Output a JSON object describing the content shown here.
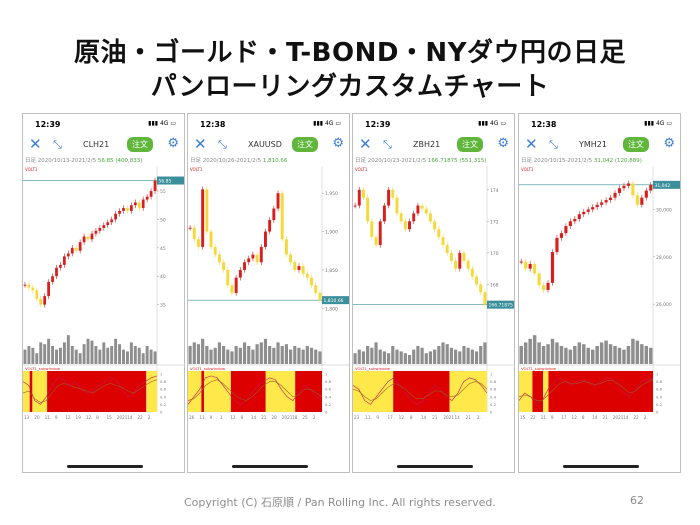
{
  "slide": {
    "title_line1": "原油・ゴールド・T-BOND・NYダウ円の日足",
    "title_line2": "パンローリングカスタムチャート",
    "footer": "Copyright (C) 石原順 / Pan Rolling Inc. All rights reserved.",
    "page_number": "62"
  },
  "common": {
    "network": "4G",
    "order_label": "注文",
    "close_icon": "close-icon",
    "pin_icon": "expand-icon",
    "gear_icon": "gear-icon",
    "indicator_label": "VOLT1",
    "subwindow_label": "VOLT1_subwindow",
    "colors": {
      "up": "#d81e1e",
      "down": "#f5d93a",
      "fill_red": "#dd0000",
      "fill_yellow": "#ffe94a",
      "current_line": "#3a8f9b"
    }
  },
  "phones": [
    {
      "time": "12:39",
      "symbol": "CLH21",
      "info_prefix": "日足 2020/10/13-2021/2/5",
      "info_current": "56.85 (400,833)",
      "price_tag": "56.85",
      "y_ticks": [
        "55",
        "50",
        "45",
        "40",
        "35"
      ],
      "x_ticks": [
        "13",
        "20",
        "11.",
        "9",
        "12",
        "19",
        "12.",
        "8",
        "15",
        "2021",
        "14",
        "22",
        "2."
      ],
      "chart_data": {
        "type": "line",
        "y": [
          38.5,
          38,
          37.5,
          36,
          35,
          36.5,
          39,
          40,
          41.5,
          42,
          43.5,
          44,
          45,
          44.5,
          46,
          47,
          46.5,
          47.5,
          48,
          48.5,
          49,
          49.5,
          50,
          51,
          51.5,
          52,
          51.5,
          52.5,
          53,
          52,
          53.5,
          54,
          55,
          56.85
        ],
        "ylim": [
          33,
          58
        ],
        "current": 56.85,
        "volume": [
          0.4,
          0.5,
          0.45,
          0.3,
          0.6,
          0.55,
          0.7,
          0.5,
          0.4,
          0.45,
          0.6,
          0.8,
          0.5,
          0.4,
          0.3,
          0.55,
          0.7,
          0.65,
          0.5,
          0.4,
          0.6,
          0.45,
          0.5,
          0.7,
          0.55,
          0.4,
          0.35,
          0.6,
          0.5,
          0.45,
          0.3,
          0.5,
          0.4,
          0.35
        ],
        "sub_bands": [
          [
            "yellow",
            0.05
          ],
          [
            "red",
            0.07
          ],
          [
            "yellow",
            0.18
          ],
          [
            "red",
            0.92
          ],
          [
            "yellow",
            1.0
          ]
        ],
        "sub_line1": [
          0.8,
          0.7,
          0.3,
          0.2,
          0.4,
          0.7,
          0.9,
          0.85,
          0.7,
          0.8,
          0.6,
          0.5,
          0.55,
          0.7,
          0.8,
          0.9,
          0.85,
          0.6,
          0.4,
          0.5,
          0.7,
          0.8,
          0.9,
          0.95
        ],
        "sub_line2": [
          0.5,
          0.55,
          0.35,
          0.25,
          0.3,
          0.5,
          0.7,
          0.75,
          0.7,
          0.65,
          0.6,
          0.55,
          0.5,
          0.6,
          0.7,
          0.75,
          0.7,
          0.65,
          0.55,
          0.5,
          0.6,
          0.7,
          0.8,
          0.85
        ]
      }
    },
    {
      "time": "12:38",
      "symbol": "XAUUSD",
      "info_prefix": "日足 2020/10/26-2021/2/5",
      "info_current": "1,810.66",
      "price_tag": "1,810.66",
      "y_ticks": [
        "1,950",
        "1,900",
        "1,850",
        "1,800"
      ],
      "x_ticks": [
        "26",
        "11.",
        "9",
        "1",
        "12.",
        "8",
        "14",
        "21",
        "28",
        "2021",
        "18",
        "25",
        "2."
      ],
      "chart_data": {
        "type": "line",
        "y": [
          1905,
          1890,
          1880,
          1955,
          1900,
          1880,
          1870,
          1860,
          1850,
          1830,
          1820,
          1840,
          1850,
          1860,
          1865,
          1870,
          1860,
          1880,
          1900,
          1915,
          1930,
          1950,
          1890,
          1870,
          1860,
          1850,
          1855,
          1845,
          1840,
          1830,
          1820,
          1810.66
        ],
        "ylim": [
          1790,
          1975
        ],
        "current": 1810.66,
        "volume": [
          0.5,
          0.6,
          0.55,
          0.7,
          0.5,
          0.4,
          0.45,
          0.6,
          0.5,
          0.4,
          0.35,
          0.5,
          0.45,
          0.6,
          0.5,
          0.4,
          0.55,
          0.6,
          0.7,
          0.5,
          0.45,
          0.6,
          0.5,
          0.55,
          0.4,
          0.5,
          0.45,
          0.4,
          0.5,
          0.45,
          0.4,
          0.35
        ],
        "sub_bands": [
          [
            "yellow",
            0.1
          ],
          [
            "red",
            0.12
          ],
          [
            "yellow",
            0.32
          ],
          [
            "red",
            0.58
          ],
          [
            "yellow",
            0.8
          ],
          [
            "red",
            1.0
          ]
        ],
        "sub_line1": [
          0.2,
          0.4,
          0.6,
          0.9,
          0.95,
          0.9,
          0.7,
          0.5,
          0.3,
          0.2,
          0.3,
          0.5,
          0.7,
          0.8,
          0.9,
          0.85,
          0.6,
          0.4,
          0.3,
          0.5,
          0.7,
          0.6,
          0.4,
          0.3
        ],
        "sub_line2": [
          0.3,
          0.35,
          0.5,
          0.7,
          0.8,
          0.85,
          0.75,
          0.6,
          0.45,
          0.35,
          0.3,
          0.4,
          0.55,
          0.7,
          0.8,
          0.8,
          0.7,
          0.55,
          0.4,
          0.45,
          0.6,
          0.6,
          0.5,
          0.4
        ]
      }
    },
    {
      "time": "12:39",
      "symbol": "ZBH21",
      "info_prefix": "日足 2020/10/23-2021/2/5",
      "info_current": "166.71875 (551,315)",
      "price_tag": "166.71875",
      "y_ticks": [
        "174",
        "172",
        "170",
        "168"
      ],
      "x_ticks": [
        "23",
        "11.",
        "9",
        "17",
        "12.",
        "8",
        "14",
        "21",
        "2021",
        "14",
        "21",
        "2."
      ],
      "chart_data": {
        "type": "line",
        "y": [
          173,
          174,
          173.5,
          172,
          171,
          170.5,
          172,
          173,
          174,
          173.5,
          172.5,
          172,
          171.5,
          172,
          172.5,
          173,
          172.8,
          172.5,
          172,
          171.5,
          171,
          170.5,
          170,
          169.5,
          169,
          170,
          169.5,
          169,
          168.5,
          168,
          167.5,
          166.71875
        ],
        "ylim": [
          166,
          175
        ],
        "current": 166.71875,
        "volume": [
          0.3,
          0.4,
          0.35,
          0.5,
          0.45,
          0.6,
          0.4,
          0.35,
          0.3,
          0.5,
          0.4,
          0.35,
          0.3,
          0.25,
          0.4,
          0.5,
          0.45,
          0.3,
          0.35,
          0.4,
          0.5,
          0.6,
          0.55,
          0.45,
          0.4,
          0.35,
          0.5,
          0.45,
          0.4,
          0.35,
          0.5,
          0.6
        ],
        "sub_bands": [
          [
            "yellow",
            0.3
          ],
          [
            "red",
            0.72
          ],
          [
            "yellow",
            1.0
          ]
        ],
        "sub_line1": [
          0.7,
          0.6,
          0.3,
          0.2,
          0.4,
          0.6,
          0.8,
          0.9,
          0.7,
          0.5,
          0.3,
          0.2,
          0.3,
          0.5,
          0.7,
          0.6,
          0.4,
          0.3,
          0.5,
          0.8,
          0.9,
          0.85,
          0.7,
          0.5
        ],
        "sub_line2": [
          0.6,
          0.55,
          0.4,
          0.3,
          0.35,
          0.5,
          0.65,
          0.75,
          0.7,
          0.6,
          0.45,
          0.35,
          0.35,
          0.45,
          0.55,
          0.55,
          0.45,
          0.4,
          0.45,
          0.6,
          0.75,
          0.8,
          0.75,
          0.6
        ]
      }
    },
    {
      "time": "12:38",
      "symbol": "YMH21",
      "info_prefix": "日足 2020/10/15-2021/2/5",
      "info_current": "31,042 (120,889)",
      "price_tag": "31,042",
      "y_ticks": [
        "30,000",
        "28,000",
        "26,000"
      ],
      "x_ticks": [
        "15",
        "22",
        "11.",
        "9",
        "17",
        "12.",
        "8",
        "14",
        "21",
        "2021",
        "14",
        "22",
        "2."
      ],
      "chart_data": {
        "type": "line",
        "y": [
          27800,
          27500,
          27700,
          27300,
          26800,
          26600,
          26900,
          28200,
          28800,
          29000,
          29300,
          29500,
          29600,
          29800,
          29900,
          30000,
          30100,
          30200,
          30300,
          30400,
          30500,
          30700,
          30900,
          31000,
          31100,
          30600,
          30200,
          30500,
          30800,
          31042
        ],
        "ylim": [
          25500,
          31500
        ],
        "current": 31042,
        "volume": [
          0.5,
          0.6,
          0.7,
          0.8,
          0.6,
          0.5,
          0.55,
          0.7,
          0.6,
          0.5,
          0.45,
          0.4,
          0.5,
          0.6,
          0.55,
          0.45,
          0.4,
          0.5,
          0.6,
          0.65,
          0.55,
          0.5,
          0.45,
          0.4,
          0.5,
          0.7,
          0.65,
          0.55,
          0.5,
          0.45
        ],
        "sub_bands": [
          [
            "yellow",
            0.1
          ],
          [
            "red",
            0.18
          ],
          [
            "yellow",
            0.22
          ],
          [
            "red",
            1.0
          ]
        ],
        "sub_line1": [
          0.3,
          0.5,
          0.4,
          0.2,
          0.3,
          0.6,
          0.8,
          0.9,
          0.8,
          0.7,
          0.8,
          0.85,
          0.75,
          0.7,
          0.8,
          0.9,
          0.85,
          0.7,
          0.5,
          0.4,
          0.6,
          0.8,
          0.85,
          0.9
        ],
        "sub_line2": [
          0.4,
          0.45,
          0.4,
          0.3,
          0.3,
          0.45,
          0.6,
          0.75,
          0.8,
          0.75,
          0.75,
          0.8,
          0.78,
          0.72,
          0.75,
          0.82,
          0.83,
          0.75,
          0.62,
          0.5,
          0.55,
          0.7,
          0.78,
          0.85
        ]
      }
    }
  ]
}
